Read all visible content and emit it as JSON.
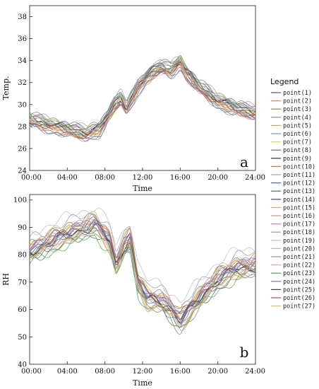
{
  "legend": {
    "title": "Legend"
  },
  "chart_data": [
    {
      "type": "line",
      "panel_label": "a",
      "xlabel": "Time",
      "ylabel": "Temp.",
      "xticks": [
        "00:00",
        "04:00",
        "08:00",
        "12:00",
        "16:00",
        "20:00",
        "24:00"
      ],
      "yticks": [
        24,
        26,
        28,
        30,
        32,
        34,
        36,
        38
      ],
      "xlim": [
        0,
        24
      ],
      "ylim": [
        24,
        39
      ],
      "grid": false,
      "legend_position": "right",
      "anchor_hours": [
        0,
        3,
        6,
        7.5,
        9,
        9.7,
        10.3,
        11.5,
        13,
        14,
        15,
        16,
        16.5,
        18,
        20,
        22,
        24
      ],
      "series_base_values": [
        28.6,
        27.9,
        27.3,
        27.8,
        29.9,
        30.6,
        29.6,
        31.6,
        32.9,
        33.4,
        33.1,
        33.9,
        33.0,
        31.6,
        30.3,
        29.6,
        29.2
      ],
      "series": [
        {
          "name": "point(1)",
          "color": "#555555",
          "offset": 0.3
        },
        {
          "name": "point(2)",
          "color": "#e08a5a",
          "offset": -0.2
        },
        {
          "name": "point(3)",
          "color": "#9b8a3a",
          "offset": 0.1
        },
        {
          "name": "point(4)",
          "color": "#8c8c8c",
          "offset": 0.5
        },
        {
          "name": "point(5)",
          "color": "#c9b23a",
          "offset": -0.4
        },
        {
          "name": "point(6)",
          "color": "#6b8fd4",
          "offset": 0.2
        },
        {
          "name": "point(7)",
          "color": "#e2c96a",
          "offset": -0.1
        },
        {
          "name": "point(8)",
          "color": "#5a6ea8",
          "offset": 0.4
        },
        {
          "name": "point(9)",
          "color": "#333333",
          "offset": 0.0
        },
        {
          "name": "point(10)",
          "color": "#c77b3a",
          "offset": -0.3
        },
        {
          "name": "point(11)",
          "color": "#a0a0a0",
          "offset": 0.6
        },
        {
          "name": "point(12)",
          "color": "#3e6bb5",
          "offset": -0.5
        },
        {
          "name": "point(13)",
          "color": "#4d7c4a",
          "offset": 0.15
        },
        {
          "name": "point(14)",
          "color": "#2f4f8f",
          "offset": -0.15
        },
        {
          "name": "point(15)",
          "color": "#d9b04a",
          "offset": 0.35
        },
        {
          "name": "point(16)",
          "color": "#b0a07a",
          "offset": -0.25
        },
        {
          "name": "point(17)",
          "color": "#d07ac0",
          "offset": 0.45
        },
        {
          "name": "point(18)",
          "color": "#999999",
          "offset": -0.6
        },
        {
          "name": "point(19)",
          "color": "#c0c0c0",
          "offset": 0.25
        },
        {
          "name": "point(20)",
          "color": "#f0a0a0",
          "offset": -0.35
        },
        {
          "name": "point(21)",
          "color": "#7aa0d0",
          "offset": 0.05
        },
        {
          "name": "point(22)",
          "color": "#e0b090",
          "offset": -0.05
        },
        {
          "name": "point(23)",
          "color": "#5aa05a",
          "offset": 0.55
        },
        {
          "name": "point(24)",
          "color": "#8a7a9a",
          "offset": -0.45
        },
        {
          "name": "point(25)",
          "color": "#404040",
          "offset": 0.2
        },
        {
          "name": "point(26)",
          "color": "#b05050",
          "offset": -0.2
        },
        {
          "name": "point(27)",
          "color": "#d0c080",
          "offset": 0.1
        }
      ]
    },
    {
      "type": "line",
      "panel_label": "b",
      "xlabel": "Time",
      "ylabel": "RH",
      "xticks": [
        "00:00",
        "04:00",
        "08:00",
        "12:00",
        "16:00",
        "20:00",
        "24:00"
      ],
      "yticks": [
        40,
        50,
        60,
        70,
        80,
        90,
        100
      ],
      "xlim": [
        0,
        24
      ],
      "ylim": [
        40,
        102
      ],
      "grid": false,
      "legend_position": "right",
      "anchor_hours": [
        0,
        3,
        6,
        7,
        8.5,
        9.2,
        10,
        10.7,
        11.5,
        12.5,
        14,
        15,
        16,
        17,
        18.5,
        20,
        22,
        24
      ],
      "series_base_values": [
        81,
        86,
        90,
        91,
        85,
        76,
        83,
        86,
        70,
        64,
        63,
        60,
        56,
        60,
        66,
        71,
        75,
        76
      ],
      "series": [
        {
          "name": "point(1)",
          "offset": -1.0
        },
        {
          "name": "point(2)",
          "offset": 1.2
        },
        {
          "name": "point(3)",
          "offset": -0.5
        },
        {
          "name": "point(4)",
          "offset": 2.0
        },
        {
          "name": "point(5)",
          "offset": -2.2
        },
        {
          "name": "point(6)",
          "offset": 0.6
        },
        {
          "name": "point(7)",
          "offset": 1.8
        },
        {
          "name": "point(8)",
          "offset": -1.6
        },
        {
          "name": "point(9)",
          "offset": 0.0
        },
        {
          "name": "point(10)",
          "offset": 2.6
        },
        {
          "name": "point(11)",
          "offset": -2.8
        },
        {
          "name": "point(12)",
          "offset": 1.0
        },
        {
          "name": "point(13)",
          "offset": -3.2
        },
        {
          "name": "point(14)",
          "offset": 0.4
        },
        {
          "name": "point(15)",
          "offset": 3.0
        },
        {
          "name": "point(16)",
          "offset": -0.8
        },
        {
          "name": "point(17)",
          "offset": 1.5
        },
        {
          "name": "point(18)",
          "offset": 4.5
        },
        {
          "name": "point(19)",
          "offset": 6.5
        },
        {
          "name": "point(20)",
          "offset": -1.2
        },
        {
          "name": "point(21)",
          "offset": 0.9
        },
        {
          "name": "point(22)",
          "offset": -2.0
        },
        {
          "name": "point(23)",
          "offset": -4.0
        },
        {
          "name": "point(24)",
          "offset": 2.2
        },
        {
          "name": "point(25)",
          "offset": -0.3
        },
        {
          "name": "point(26)",
          "offset": 1.3
        },
        {
          "name": "point(27)",
          "offset": -1.8
        }
      ]
    }
  ]
}
